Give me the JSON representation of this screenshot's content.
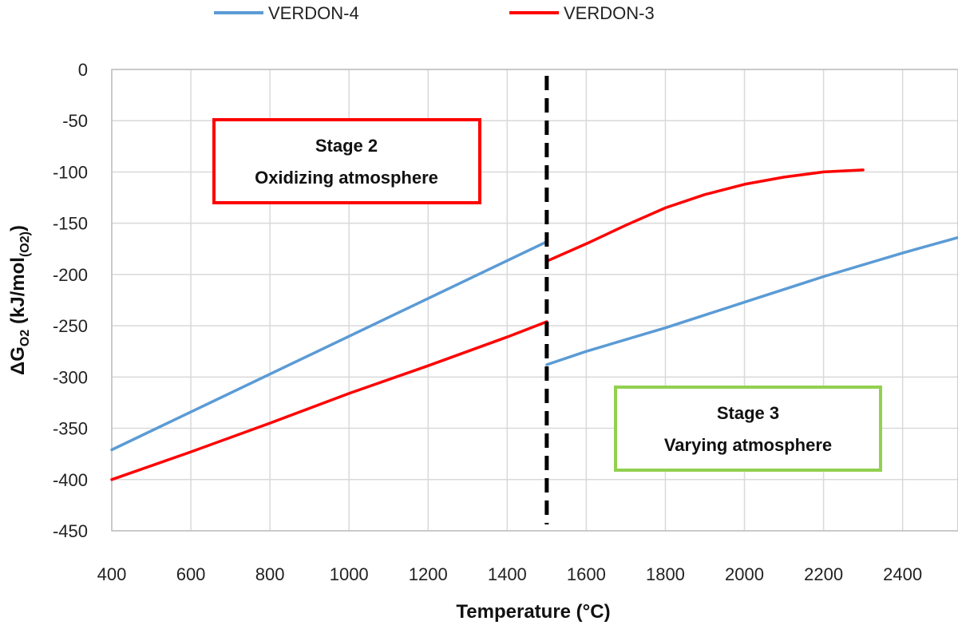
{
  "chart_data": {
    "type": "line",
    "title": "",
    "xlabel": "Temperature (°C)",
    "ylabel_parts": {
      "main": "ΔG",
      "sub1": "O2",
      "mid": " (kJ/mol",
      "sub2": "(O2)",
      "end": ")"
    },
    "xlim": [
      400,
      2540
    ],
    "ylim": [
      -450,
      0
    ],
    "x_ticks": [
      "400",
      "600",
      "800",
      "1000",
      "1200",
      "1400",
      "1600",
      "1800",
      "2000",
      "2200",
      "2400"
    ],
    "y_ticks": [
      "0",
      "-50",
      "-100",
      "-150",
      "-200",
      "-250",
      "-300",
      "-350",
      "-400",
      "-450"
    ],
    "grid": true,
    "legend_position": "top",
    "series": [
      {
        "name": "VERDON-4",
        "color": "#5b9bd5",
        "segments": [
          [
            [
              400,
              -371
            ],
            [
              1500,
              -168
            ]
          ],
          [
            [
              1500,
              -288
            ],
            [
              1600,
              -275
            ],
            [
              1800,
              -252
            ],
            [
              2000,
              -227
            ],
            [
              2200,
              -202
            ],
            [
              2400,
              -179
            ],
            [
              2540,
              -164
            ]
          ]
        ]
      },
      {
        "name": "VERDON-3",
        "color": "#ff0000",
        "segments": [
          [
            [
              400,
              -400
            ],
            [
              600,
              -373
            ],
            [
              800,
              -345
            ],
            [
              1000,
              -316
            ],
            [
              1200,
              -289
            ],
            [
              1400,
              -261
            ],
            [
              1500,
              -246
            ]
          ],
          [
            [
              1500,
              -187
            ],
            [
              1600,
              -170
            ],
            [
              1700,
              -152
            ],
            [
              1800,
              -135
            ],
            [
              1900,
              -122
            ],
            [
              2000,
              -112
            ],
            [
              2100,
              -105
            ],
            [
              2200,
              -100
            ],
            [
              2300,
              -98
            ]
          ]
        ]
      }
    ],
    "divider": {
      "x": 1500,
      "style": "dashed",
      "color": "#000000"
    },
    "annotations": [
      {
        "id": "stage2",
        "line1": "Stage 2",
        "line2": "Oxidizing atmosphere",
        "border_color": "#ff0000"
      },
      {
        "id": "stage3",
        "line1": "Stage 3",
        "line2": "Varying atmosphere",
        "border_color": "#92d050"
      }
    ]
  }
}
